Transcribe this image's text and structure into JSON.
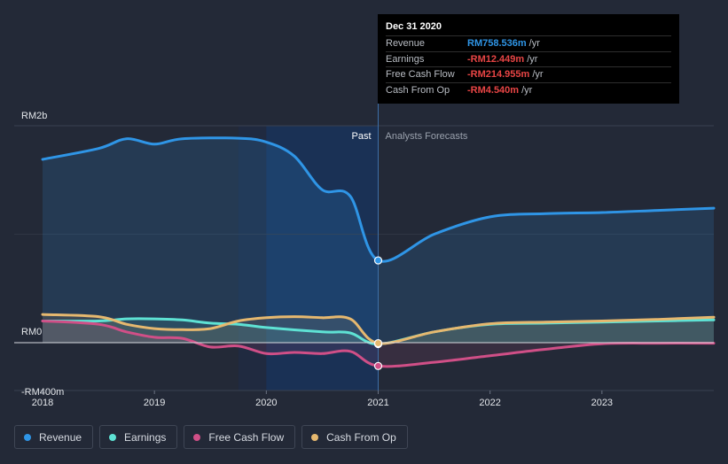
{
  "chart_data": {
    "type": "area",
    "currency_unit": "RM",
    "y_tick_labels": [
      "RM2b",
      "RM0",
      "-RM400m"
    ],
    "ylim": [
      -400,
      2000
    ],
    "xlim": [
      2018,
      2024
    ],
    "x_tick_labels": [
      "2018",
      "2019",
      "2020",
      "2021",
      "2022",
      "2023"
    ],
    "divider_x": 2021,
    "past_label": "Past",
    "forecast_label": "Analysts Forecasts",
    "series": [
      {
        "name": "Revenue",
        "color": "#2f95e6",
        "points": [
          [
            2018,
            1690
          ],
          [
            2018.5,
            1790
          ],
          [
            2018.75,
            1880
          ],
          [
            2019,
            1830
          ],
          [
            2019.25,
            1880
          ],
          [
            2019.75,
            1885
          ],
          [
            2020,
            1850
          ],
          [
            2020.25,
            1720
          ],
          [
            2020.5,
            1410
          ],
          [
            2020.75,
            1350
          ],
          [
            2021,
            758.536
          ],
          [
            2021.5,
            1000
          ],
          [
            2022,
            1160
          ],
          [
            2022.5,
            1190
          ],
          [
            2023,
            1200
          ],
          [
            2023.5,
            1220
          ],
          [
            2024,
            1240
          ]
        ]
      },
      {
        "name": "Earnings",
        "color": "#5ee2d4",
        "points": [
          [
            2018,
            200
          ],
          [
            2018.5,
            200
          ],
          [
            2018.75,
            220
          ],
          [
            2019,
            220
          ],
          [
            2019.25,
            210
          ],
          [
            2019.5,
            180
          ],
          [
            2019.75,
            170
          ],
          [
            2020,
            140
          ],
          [
            2020.5,
            100
          ],
          [
            2020.75,
            90
          ],
          [
            2021,
            -12.449
          ],
          [
            2021.5,
            100
          ],
          [
            2022,
            170
          ],
          [
            2022.5,
            180
          ],
          [
            2023,
            190
          ],
          [
            2023.5,
            200
          ],
          [
            2024,
            210
          ]
        ]
      },
      {
        "name": "Free Cash Flow",
        "color": "#d04f87",
        "points": [
          [
            2018,
            200
          ],
          [
            2018.5,
            170
          ],
          [
            2018.75,
            100
          ],
          [
            2019,
            50
          ],
          [
            2019.25,
            40
          ],
          [
            2019.5,
            -40
          ],
          [
            2019.75,
            -30
          ],
          [
            2020,
            -100
          ],
          [
            2020.25,
            -90
          ],
          [
            2020.5,
            -100
          ],
          [
            2020.75,
            -80
          ],
          [
            2021,
            -214.955
          ],
          [
            2021.5,
            -180
          ],
          [
            2022,
            -120
          ],
          [
            2022.5,
            -60
          ],
          [
            2023,
            -10
          ],
          [
            2023.5,
            -5
          ],
          [
            2024,
            -5
          ]
        ]
      },
      {
        "name": "Cash From Op",
        "color": "#e6b86f",
        "points": [
          [
            2018,
            260
          ],
          [
            2018.5,
            240
          ],
          [
            2018.75,
            170
          ],
          [
            2019,
            130
          ],
          [
            2019.25,
            120
          ],
          [
            2019.5,
            130
          ],
          [
            2019.75,
            200
          ],
          [
            2020,
            230
          ],
          [
            2020.25,
            240
          ],
          [
            2020.5,
            230
          ],
          [
            2020.75,
            220
          ],
          [
            2021,
            -4.54
          ],
          [
            2021.5,
            100
          ],
          [
            2022,
            175
          ],
          [
            2022.5,
            190
          ],
          [
            2023,
            200
          ],
          [
            2023.5,
            215
          ],
          [
            2024,
            235
          ]
        ]
      }
    ]
  },
  "tooltip": {
    "date": "Dec 31 2020",
    "rows": [
      {
        "label": "Revenue",
        "value": "RM758.536m",
        "unit": "/yr",
        "color": "#2f95e6"
      },
      {
        "label": "Earnings",
        "value": "-RM12.449m",
        "unit": "/yr",
        "color": "#e84545"
      },
      {
        "label": "Free Cash Flow",
        "value": "-RM214.955m",
        "unit": "/yr",
        "color": "#e84545"
      },
      {
        "label": "Cash From Op",
        "value": "-RM4.540m",
        "unit": "/yr",
        "color": "#e84545"
      }
    ]
  },
  "legend": [
    {
      "label": "Revenue",
      "color": "#2f95e6"
    },
    {
      "label": "Earnings",
      "color": "#5ee2d4"
    },
    {
      "label": "Free Cash Flow",
      "color": "#d04f87"
    },
    {
      "label": "Cash From Op",
      "color": "#e6b86f"
    }
  ]
}
